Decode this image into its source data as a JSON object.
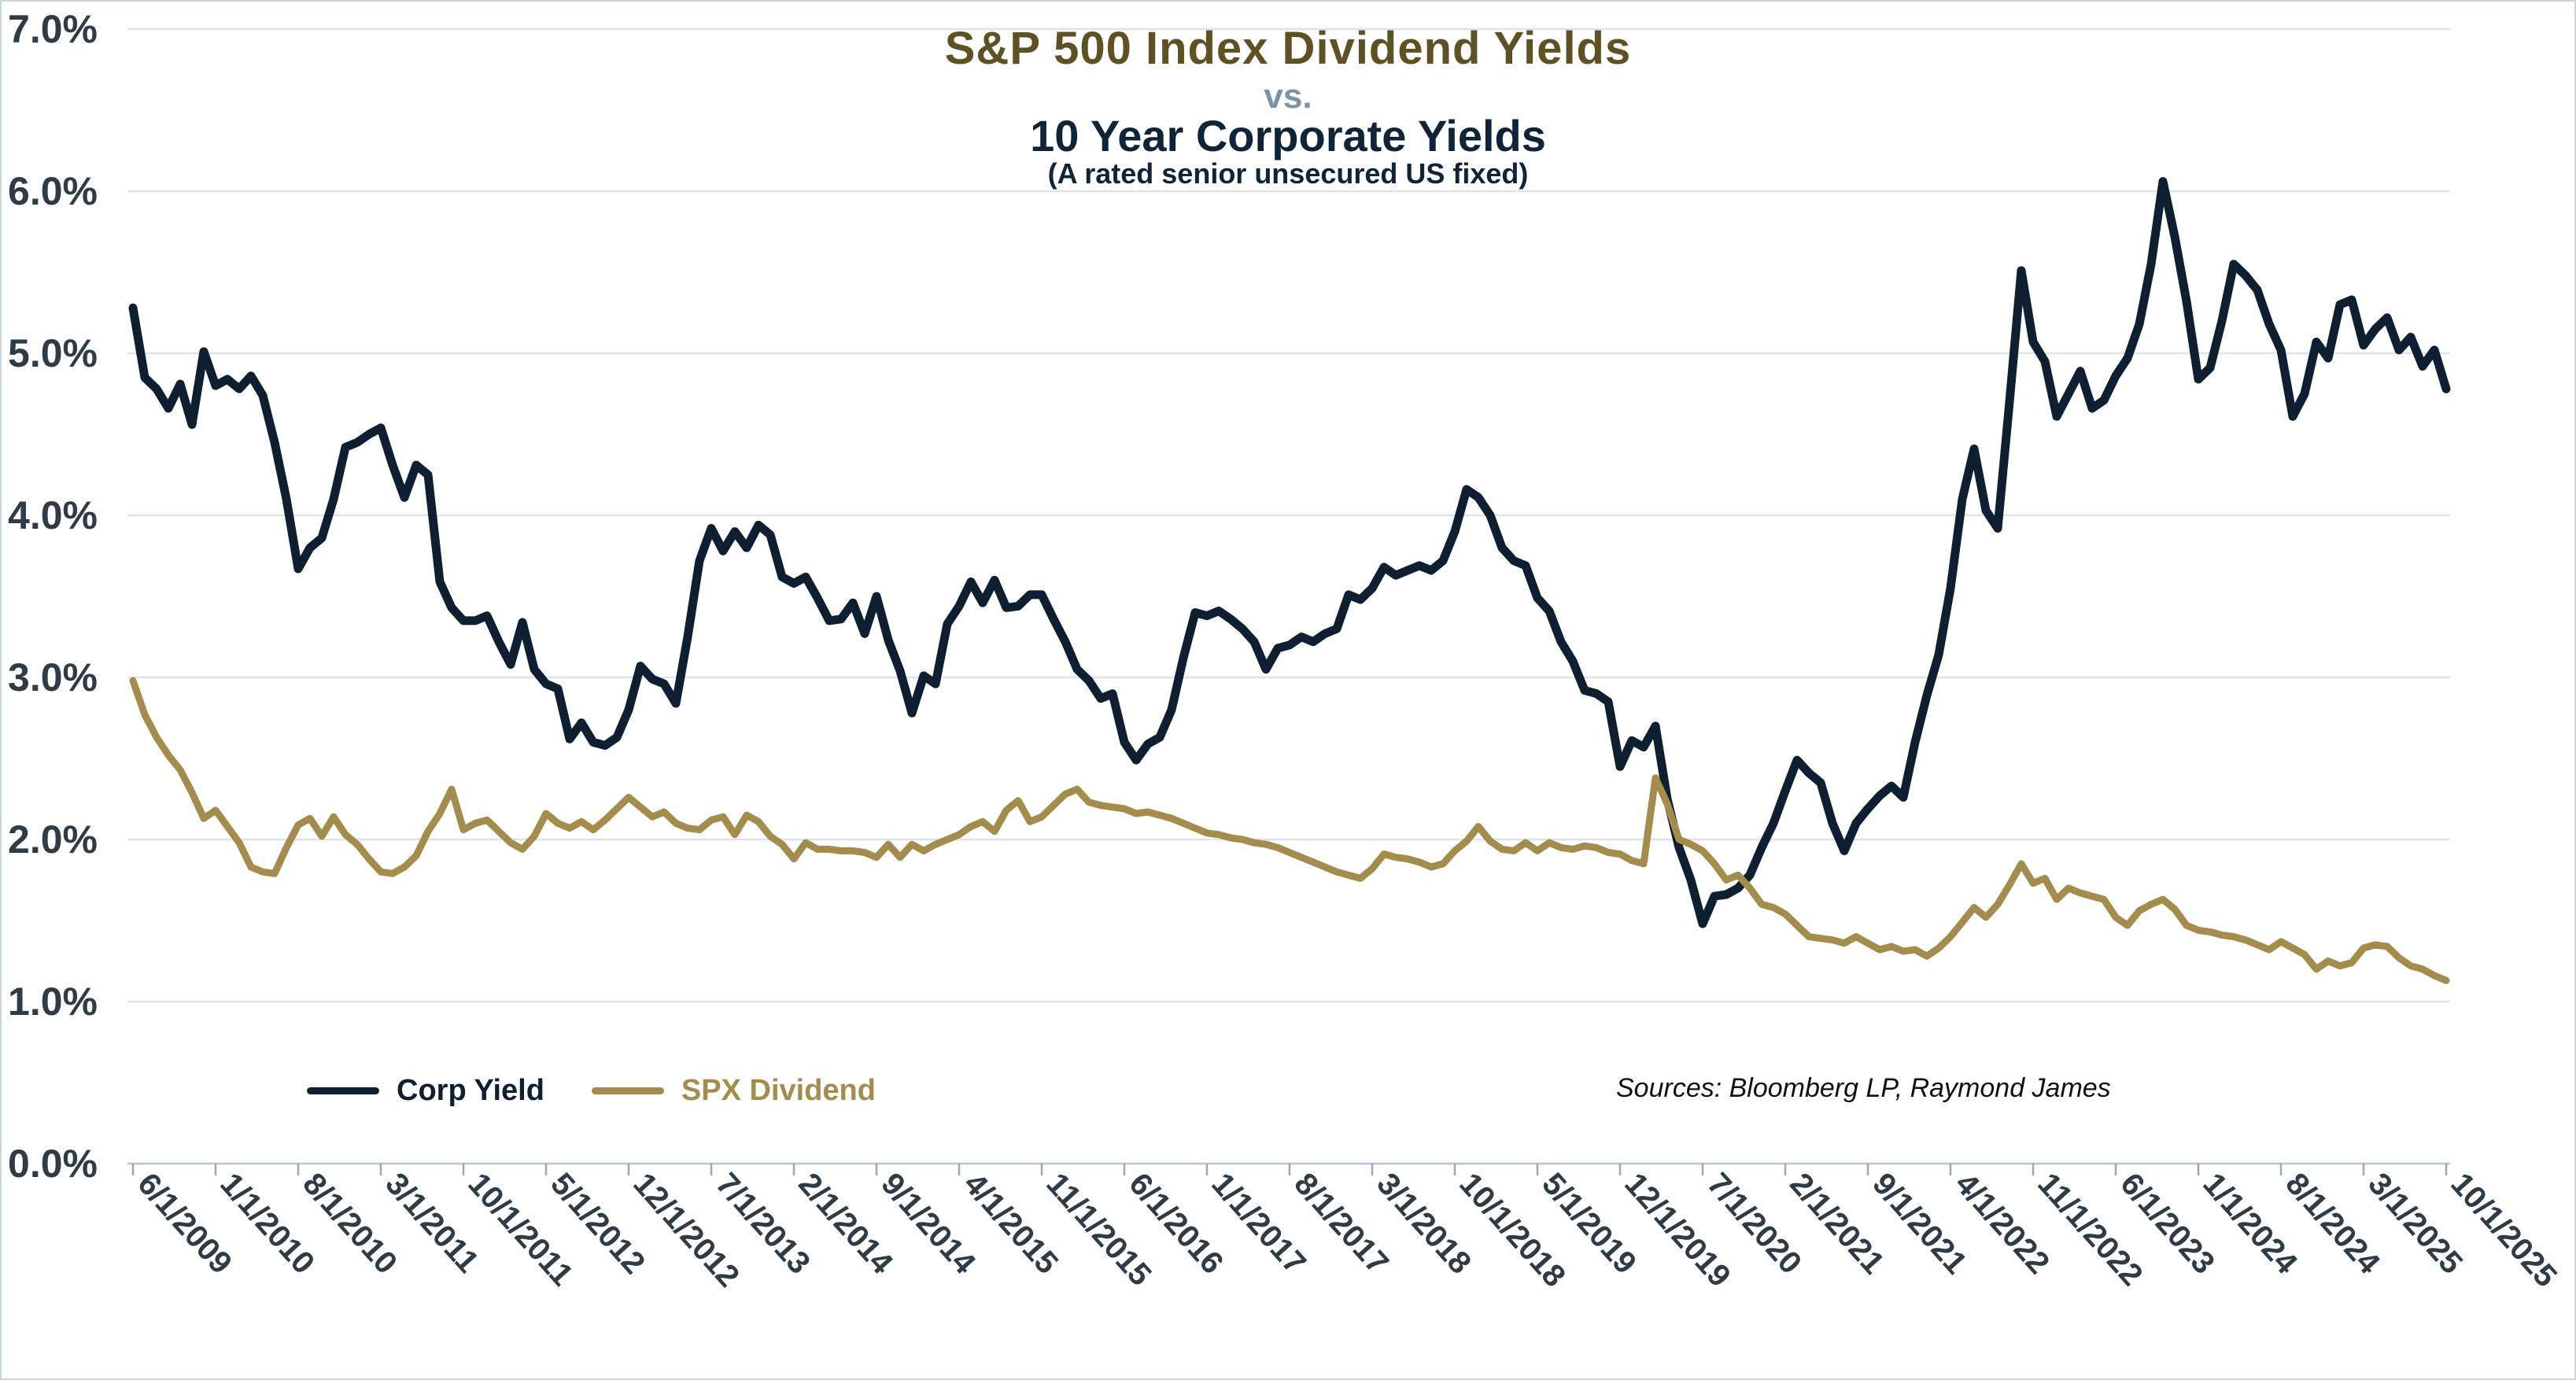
{
  "titles": {
    "main": "S&P 500 Index Dividend Yields",
    "vs": "vs.",
    "secondary": "10 Year Corporate Yields",
    "subtitle": "(A rated senior unsecured US fixed)"
  },
  "sources": "Sources: Bloomberg LP, Raymond James",
  "legend": {
    "items": [
      {
        "label": "Corp Yield",
        "color": "#0d1f30"
      },
      {
        "label": "SPX Dividend",
        "color": "#a38c4c"
      }
    ]
  },
  "colors": {
    "corp_line": "#0d1f30",
    "spx_line": "#a38c4c",
    "gridline": "#dde4ea",
    "axis_line": "#b8c4cc",
    "tick_mark": "#9aa8b2",
    "axis_label": "#2f3b45",
    "title_gold": "#5e5124",
    "title_navy": "#0f2438",
    "vs_blue": "#7c93a6"
  },
  "chart_data": {
    "type": "line",
    "title": "S&P 500 Index Dividend Yields vs. 10 Year Corporate Yields (A rated senior unsecured US fixed)",
    "frequency": "monthly",
    "x_start": "6/1/2009",
    "x_end": "10/1/2025",
    "x_tick_interval_months": 7,
    "x_tick_labels": [
      "6/1/2009",
      "1/1/2010",
      "8/1/2010",
      "3/1/2011",
      "10/1/2011",
      "5/1/2012",
      "12/1/2012",
      "7/1/2013",
      "2/1/2014",
      "9/1/2014",
      "4/1/2015",
      "11/1/2015",
      "6/1/2016",
      "1/1/2017",
      "8/1/2017",
      "3/1/2018",
      "10/1/2018",
      "5/1/2019",
      "12/1/2019",
      "7/1/2020",
      "2/1/2021",
      "9/1/2021",
      "4/1/2022",
      "11/1/2022",
      "6/1/2023",
      "1/1/2024",
      "8/1/2024",
      "3/1/2025",
      "10/1/2025"
    ],
    "ylabel": "",
    "ylim": [
      0,
      7
    ],
    "y_tick_labels": [
      "0.0%",
      "1.0%",
      "2.0%",
      "3.0%",
      "4.0%",
      "5.0%",
      "6.0%",
      "7.0%"
    ],
    "grid": "horizontal",
    "legend_position": "bottom-left",
    "series": [
      {
        "name": "Corp Yield",
        "color": "#0d1f30",
        "stroke_width": 11,
        "values": [
          5.28,
          4.85,
          4.78,
          4.66,
          4.81,
          4.56,
          5.01,
          4.8,
          4.84,
          4.78,
          4.86,
          4.74,
          4.45,
          4.1,
          3.67,
          3.8,
          3.86,
          4.1,
          4.42,
          4.45,
          4.5,
          4.54,
          4.31,
          4.11,
          4.31,
          4.25,
          3.59,
          3.43,
          3.35,
          3.35,
          3.38,
          3.22,
          3.08,
          3.34,
          3.05,
          2.96,
          2.93,
          2.62,
          2.72,
          2.6,
          2.58,
          2.63,
          2.8,
          3.07,
          2.99,
          2.96,
          2.84,
          3.25,
          3.72,
          3.92,
          3.78,
          3.9,
          3.8,
          3.94,
          3.88,
          3.62,
          3.58,
          3.62,
          3.49,
          3.35,
          3.36,
          3.46,
          3.27,
          3.5,
          3.23,
          3.04,
          2.78,
          3.01,
          2.96,
          3.33,
          3.44,
          3.59,
          3.46,
          3.6,
          3.43,
          3.44,
          3.51,
          3.51,
          3.36,
          3.22,
          3.05,
          2.98,
          2.87,
          2.9,
          2.6,
          2.49,
          2.59,
          2.63,
          2.8,
          3.12,
          3.4,
          3.38,
          3.41,
          3.36,
          3.3,
          3.22,
          3.05,
          3.18,
          3.2,
          3.25,
          3.22,
          3.27,
          3.3,
          3.51,
          3.48,
          3.55,
          3.68,
          3.63,
          3.66,
          3.69,
          3.66,
          3.72,
          3.9,
          4.16,
          4.11,
          4.0,
          3.8,
          3.72,
          3.69,
          3.49,
          3.41,
          3.22,
          3.1,
          2.92,
          2.9,
          2.85,
          2.45,
          2.61,
          2.57,
          2.7,
          2.25,
          1.95,
          1.75,
          1.48,
          1.65,
          1.66,
          1.7,
          1.78,
          1.95,
          2.1,
          2.3,
          2.49,
          2.41,
          2.35,
          2.1,
          1.93,
          2.1,
          2.19,
          2.27,
          2.33,
          2.26,
          2.6,
          2.89,
          3.14,
          3.55,
          4.1,
          4.41,
          4.03,
          3.92,
          4.7,
          5.51,
          5.07,
          4.95,
          4.61,
          4.75,
          4.89,
          4.66,
          4.71,
          4.86,
          4.97,
          5.18,
          5.55,
          6.06,
          5.72,
          5.32,
          4.84,
          4.91,
          5.2,
          5.55,
          5.48,
          5.39,
          5.18,
          5.02,
          4.61,
          4.75,
          5.07,
          4.97,
          5.3,
          5.33,
          5.05,
          5.15,
          5.22,
          5.02,
          5.1,
          4.92,
          5.02,
          4.78
        ]
      },
      {
        "name": "SPX Dividend",
        "color": "#a38c4c",
        "stroke_width": 9,
        "values": [
          2.98,
          2.77,
          2.63,
          2.52,
          2.43,
          2.29,
          2.13,
          2.18,
          2.08,
          1.98,
          1.83,
          1.8,
          1.79,
          1.95,
          2.09,
          2.13,
          2.02,
          2.14,
          2.03,
          1.97,
          1.88,
          1.8,
          1.79,
          1.83,
          1.9,
          2.05,
          2.16,
          2.31,
          2.06,
          2.1,
          2.12,
          2.05,
          1.98,
          1.94,
          2.02,
          2.16,
          2.1,
          2.07,
          2.11,
          2.06,
          2.12,
          2.19,
          2.26,
          2.2,
          2.14,
          2.17,
          2.1,
          2.07,
          2.06,
          2.12,
          2.14,
          2.03,
          2.15,
          2.11,
          2.02,
          1.97,
          1.88,
          1.98,
          1.94,
          1.94,
          1.93,
          1.93,
          1.92,
          1.89,
          1.97,
          1.89,
          1.97,
          1.93,
          1.97,
          2.0,
          2.03,
          2.08,
          2.11,
          2.05,
          2.18,
          2.24,
          2.11,
          2.14,
          2.21,
          2.28,
          2.31,
          2.23,
          2.21,
          2.2,
          2.19,
          2.16,
          2.17,
          2.15,
          2.13,
          2.1,
          2.07,
          2.04,
          2.03,
          2.01,
          2.0,
          1.98,
          1.97,
          1.95,
          1.92,
          1.89,
          1.86,
          1.83,
          1.8,
          1.78,
          1.76,
          1.82,
          1.91,
          1.89,
          1.88,
          1.86,
          1.83,
          1.85,
          1.93,
          1.99,
          2.08,
          1.99,
          1.94,
          1.93,
          1.98,
          1.93,
          1.98,
          1.95,
          1.94,
          1.96,
          1.95,
          1.92,
          1.91,
          1.87,
          1.85,
          2.38,
          2.22,
          2.0,
          1.97,
          1.93,
          1.85,
          1.75,
          1.78,
          1.7,
          1.6,
          1.58,
          1.54,
          1.47,
          1.4,
          1.39,
          1.38,
          1.36,
          1.4,
          1.36,
          1.32,
          1.34,
          1.31,
          1.32,
          1.28,
          1.33,
          1.4,
          1.49,
          1.58,
          1.52,
          1.6,
          1.72,
          1.85,
          1.73,
          1.76,
          1.63,
          1.7,
          1.67,
          1.65,
          1.63,
          1.52,
          1.47,
          1.56,
          1.6,
          1.63,
          1.57,
          1.47,
          1.44,
          1.43,
          1.41,
          1.4,
          1.38,
          1.35,
          1.32,
          1.37,
          1.33,
          1.29,
          1.2,
          1.25,
          1.22,
          1.24,
          1.33,
          1.35,
          1.34,
          1.27,
          1.22,
          1.2,
          1.16,
          1.13
        ]
      }
    ]
  }
}
